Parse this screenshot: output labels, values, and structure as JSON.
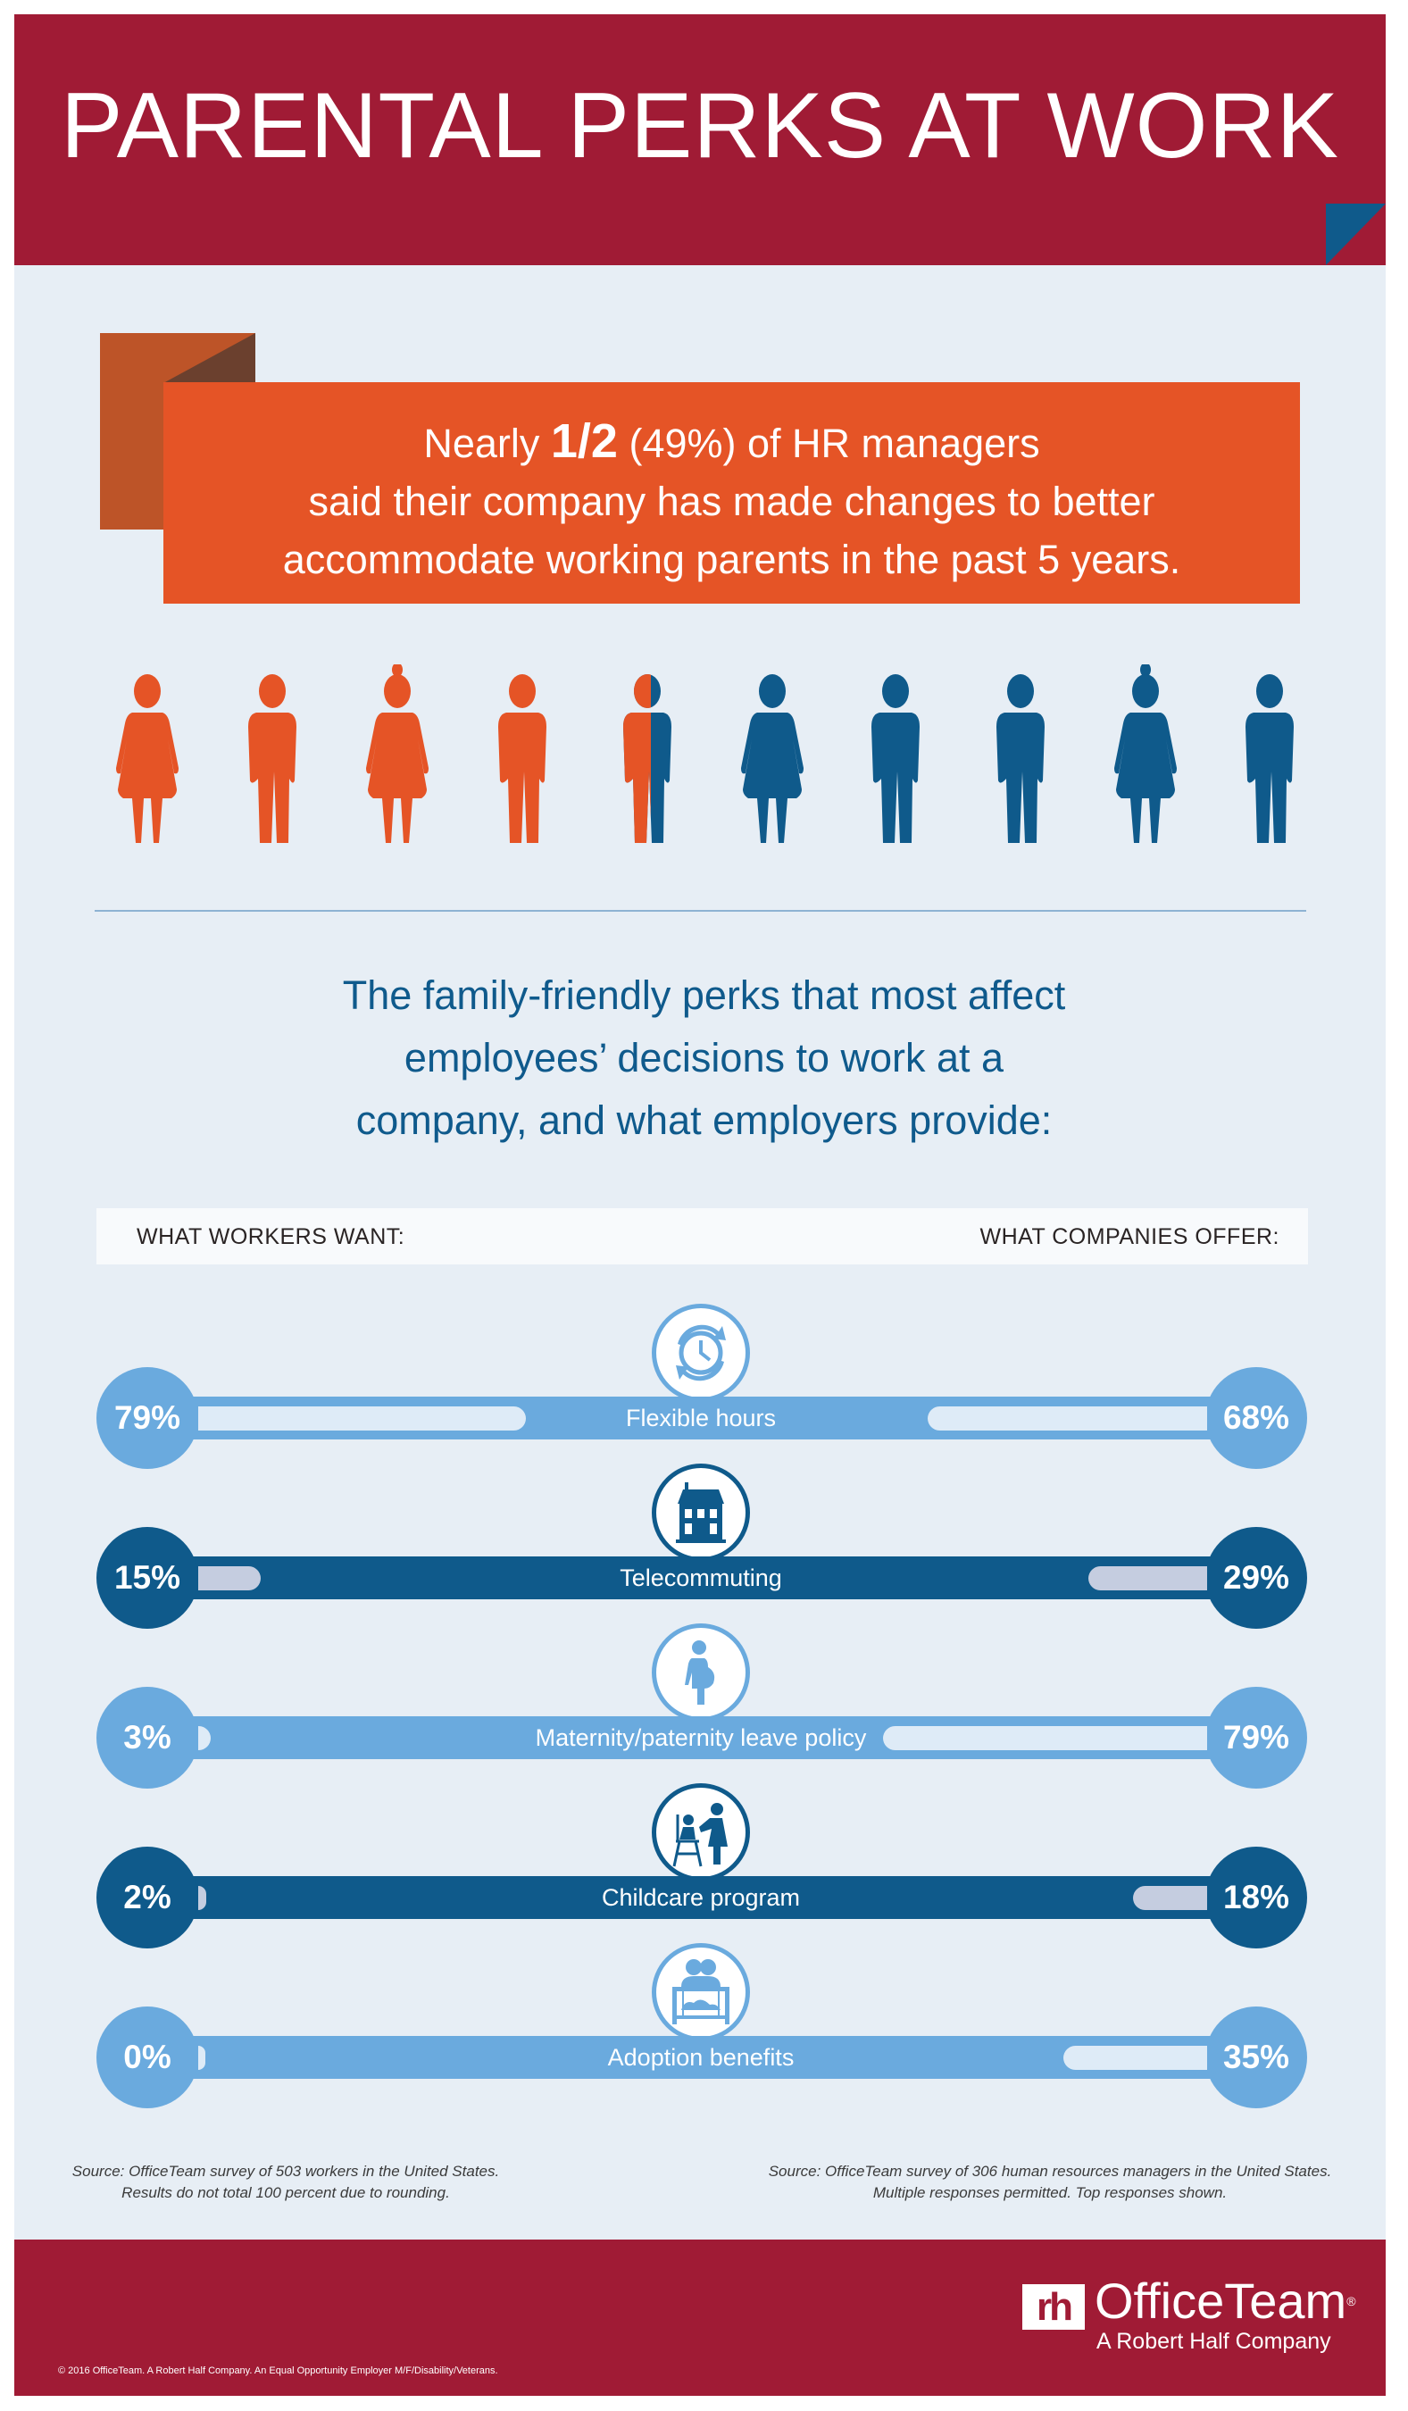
{
  "header": {
    "title": "PARENTAL PERKS AT WORK"
  },
  "stat": {
    "prefix": "Nearly ",
    "highlight": "1/2",
    "suffix": " (49%) of HR managers",
    "line2": "said their company has made changes to better",
    "line3": "accommodate working parents in the past 5 years.",
    "value_percent": 49
  },
  "people": {
    "count": 10,
    "highlighted": 4.5,
    "highlight_color": "#e55426",
    "base_color": "#0f5a8b"
  },
  "subtitle": {
    "line1": "The family-friendly perks that most affect",
    "line2": "employees’ decisions to work at a",
    "line3": "company, and what employers provide:"
  },
  "columns": {
    "left": "WHAT WORKERS WANT:",
    "right": "WHAT COMPANIES OFFER:"
  },
  "colors": {
    "light": "#6aaade",
    "dark": "#0f5a8b",
    "light_fill": "#deebf7",
    "dark_fill": "#c5cde0",
    "brand_red": "#a01b35",
    "orange": "#e55426"
  },
  "perks": [
    {
      "label": "Flexible hours",
      "workers": 79,
      "workers_label": "79%",
      "companies": 68,
      "companies_label": "68%",
      "icon": "clock-arrows-icon",
      "shade": "light"
    },
    {
      "label": "Telecommuting",
      "workers": 15,
      "workers_label": "15%",
      "companies": 29,
      "companies_label": "29%",
      "icon": "house-icon",
      "shade": "dark"
    },
    {
      "label": "Maternity/paternity leave policy",
      "workers": 3,
      "workers_label": "3%",
      "companies": 79,
      "companies_label": "79%",
      "icon": "pregnant-woman-icon",
      "shade": "light"
    },
    {
      "label": "Childcare program",
      "workers": 2,
      "workers_label": "2%",
      "companies": 18,
      "companies_label": "18%",
      "icon": "childcare-icon",
      "shade": "dark"
    },
    {
      "label": "Adoption benefits",
      "workers": 0,
      "workers_label": "0%",
      "companies": 35,
      "companies_label": "35%",
      "icon": "crib-icon",
      "shade": "light"
    }
  ],
  "sources": {
    "left_line1": "Source: OfficeTeam survey of 503 workers in the United States.",
    "left_line2": "Results do not total 100 percent due to rounding.",
    "right_line1": "Source: OfficeTeam survey of 306 human resources managers in the United States.",
    "right_line2": "Multiple responses permitted. Top responses shown."
  },
  "footer": {
    "logo_mark": "rh",
    "brand": "OfficeTeam",
    "registered": "®",
    "tagline": "A Robert Half Company",
    "copyright": "© 2016 OfficeTeam. A Robert Half Company. An Equal Opportunity Employer M/F/Disability/Veterans."
  }
}
